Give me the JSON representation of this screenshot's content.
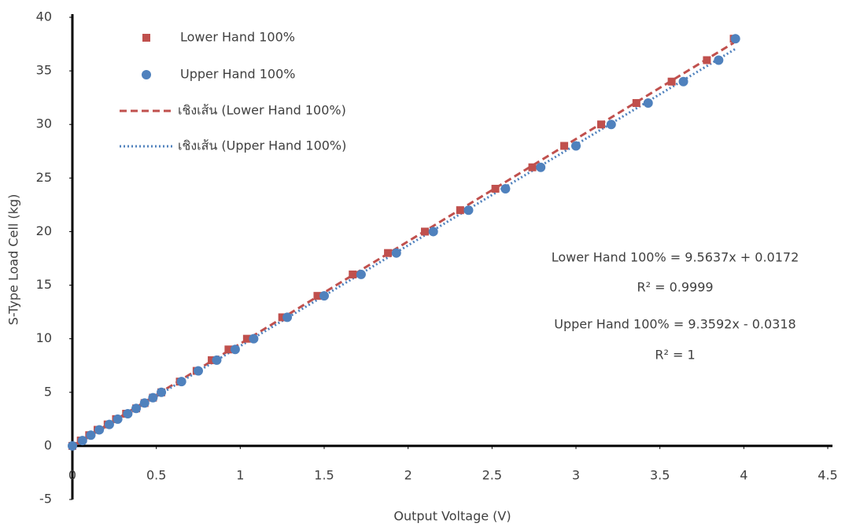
{
  "chart_data": {
    "type": "scatter",
    "x_label": "Output Voltage (V)",
    "y_label": "S-Type Load Cell (kg)",
    "xlim": [
      0,
      4.5
    ],
    "ylim": [
      -5,
      40
    ],
    "xticks": [
      0,
      0.5,
      1,
      1.5,
      2,
      2.5,
      3,
      3.5,
      4,
      4.5
    ],
    "yticks": [
      -5,
      0,
      5,
      10,
      15,
      20,
      25,
      30,
      35,
      40
    ],
    "grid": false,
    "series": [
      {
        "name": "Lower Hand 100%",
        "color": "#c0504d",
        "marker": "square",
        "x": [
          0,
          0.05,
          0.1,
          0.15,
          0.21,
          0.26,
          0.32,
          0.38,
          0.43,
          0.48,
          0.53,
          0.64,
          0.74,
          0.83,
          0.93,
          1.04,
          1.25,
          1.46,
          1.67,
          1.88,
          2.1,
          2.31,
          2.52,
          2.74,
          2.93,
          3.15,
          3.36,
          3.57,
          3.78,
          3.94
        ],
        "values": [
          0,
          0.5,
          1,
          1.5,
          2,
          2.5,
          3,
          3.5,
          4,
          4.5,
          5,
          6,
          7,
          8,
          9,
          10,
          12,
          14,
          16,
          18,
          20,
          22,
          24,
          26,
          28,
          30,
          32,
          34,
          36,
          38
        ]
      },
      {
        "name": "Upper Hand 100%",
        "color": "#4f81bd",
        "marker": "circle",
        "x": [
          0,
          0.06,
          0.11,
          0.16,
          0.22,
          0.27,
          0.33,
          0.38,
          0.43,
          0.48,
          0.53,
          0.65,
          0.75,
          0.86,
          0.97,
          1.08,
          1.28,
          1.5,
          1.72,
          1.93,
          2.15,
          2.36,
          2.58,
          2.79,
          3.0,
          3.21,
          3.43,
          3.64,
          3.85,
          3.95
        ],
        "values": [
          0,
          0.5,
          1,
          1.5,
          2,
          2.5,
          3,
          3.5,
          4,
          4.5,
          5,
          6,
          7,
          8,
          9,
          10,
          12,
          14,
          16,
          18,
          20,
          22,
          24,
          26,
          28,
          30,
          32,
          34,
          36,
          38
        ]
      }
    ],
    "trendlines": [
      {
        "name": "เชิงเส้น (Lower Hand 100%)",
        "color": "#c0504d",
        "style": "dashed"
      },
      {
        "name": "เชิงเส้น (Upper Hand 100%)",
        "color": "#4f81bd",
        "style": "dotted"
      }
    ],
    "annotations": [
      "Lower Hand 100% = 9.5637x + 0.0172",
      "R² = 0.9999",
      "Upper Hand 100% = 9.3592x - 0.0318",
      "R² = 1"
    ]
  }
}
